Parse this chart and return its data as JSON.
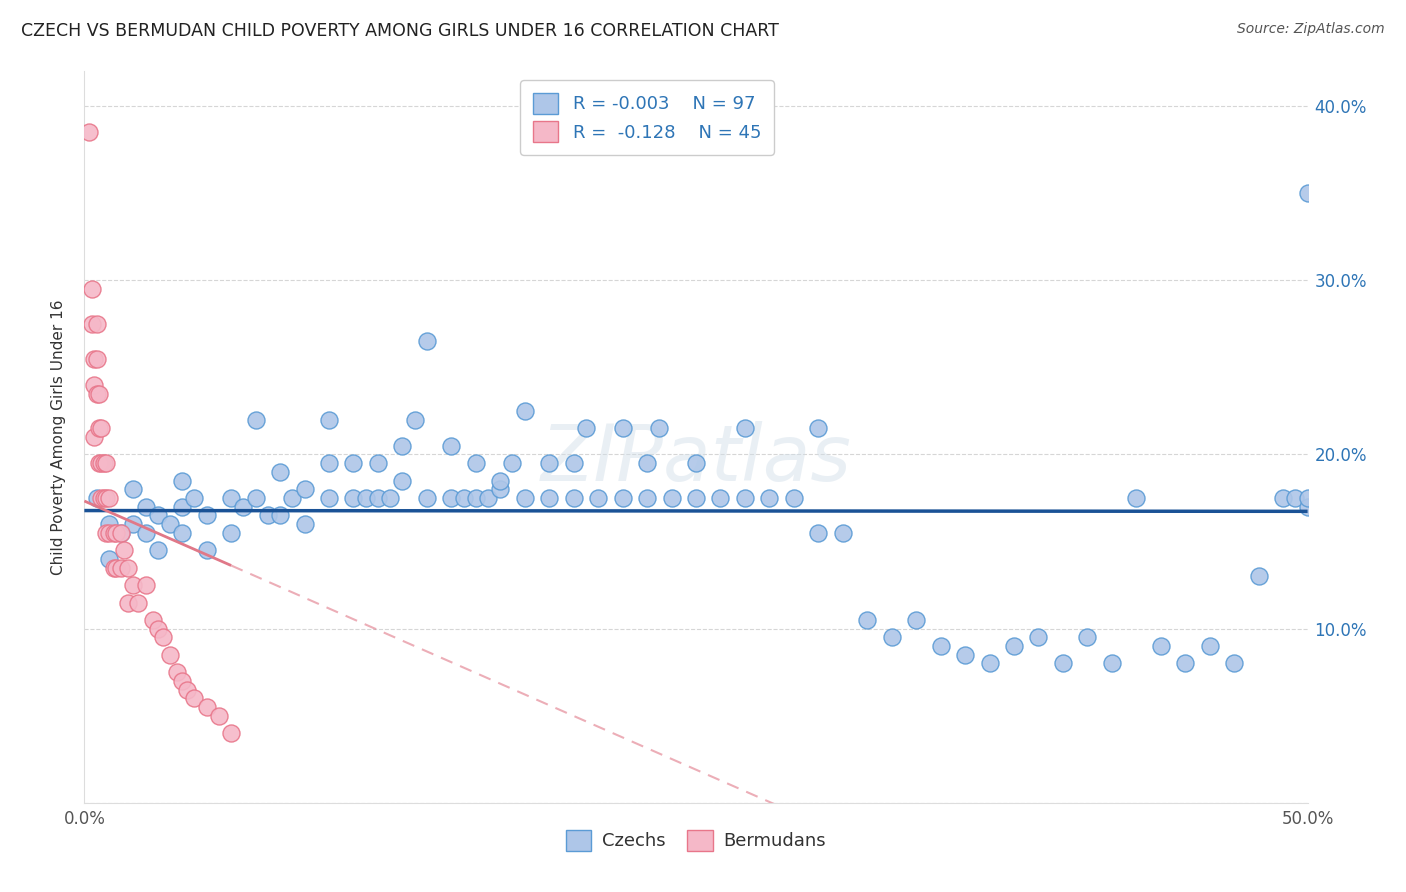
{
  "title": "CZECH VS BERMUDAN CHILD POVERTY AMONG GIRLS UNDER 16 CORRELATION CHART",
  "source": "Source: ZipAtlas.com",
  "ylabel": "Child Poverty Among Girls Under 16",
  "xlim": [
    0.0,
    0.5
  ],
  "ylim": [
    0.0,
    0.42
  ],
  "yticks": [
    0.0,
    0.1,
    0.2,
    0.3,
    0.4
  ],
  "right_ytick_labels": [
    "",
    "10.0%",
    "20.0%",
    "30.0%",
    "40.0%"
  ],
  "xticks": [
    0.0,
    0.1,
    0.2,
    0.3,
    0.4,
    0.5
  ],
  "xtick_labels": [
    "0.0%",
    "",
    "",
    "",
    "",
    "50.0%"
  ],
  "czech_color": "#aec6e8",
  "bermudan_color": "#f5b8c8",
  "czech_edge_color": "#5b9bd5",
  "bermudan_edge_color": "#e8768a",
  "trend_czech_color": "#1a5296",
  "trend_bermudan_color": "#e07888",
  "legend_text_color": "#2e75b6",
  "R_czech": -0.003,
  "N_czech": 97,
  "R_bermudan": -0.128,
  "N_bermudan": 45,
  "czech_x": [
    0.005,
    0.01,
    0.01,
    0.015,
    0.02,
    0.02,
    0.025,
    0.025,
    0.03,
    0.03,
    0.035,
    0.04,
    0.04,
    0.04,
    0.045,
    0.05,
    0.05,
    0.06,
    0.06,
    0.065,
    0.07,
    0.07,
    0.075,
    0.08,
    0.08,
    0.085,
    0.09,
    0.09,
    0.1,
    0.1,
    0.1,
    0.11,
    0.11,
    0.115,
    0.12,
    0.12,
    0.125,
    0.13,
    0.13,
    0.135,
    0.14,
    0.14,
    0.15,
    0.15,
    0.155,
    0.16,
    0.16,
    0.165,
    0.17,
    0.17,
    0.175,
    0.18,
    0.18,
    0.19,
    0.19,
    0.2,
    0.2,
    0.205,
    0.21,
    0.22,
    0.22,
    0.23,
    0.23,
    0.235,
    0.24,
    0.25,
    0.25,
    0.26,
    0.27,
    0.27,
    0.28,
    0.29,
    0.3,
    0.3,
    0.31,
    0.32,
    0.33,
    0.34,
    0.35,
    0.36,
    0.37,
    0.38,
    0.39,
    0.4,
    0.41,
    0.42,
    0.43,
    0.44,
    0.45,
    0.46,
    0.47,
    0.48,
    0.49,
    0.495,
    0.5,
    0.5,
    0.5
  ],
  "czech_y": [
    0.175,
    0.14,
    0.16,
    0.155,
    0.16,
    0.18,
    0.155,
    0.17,
    0.145,
    0.165,
    0.16,
    0.155,
    0.17,
    0.185,
    0.175,
    0.145,
    0.165,
    0.155,
    0.175,
    0.17,
    0.175,
    0.22,
    0.165,
    0.165,
    0.19,
    0.175,
    0.16,
    0.18,
    0.175,
    0.195,
    0.22,
    0.175,
    0.195,
    0.175,
    0.175,
    0.195,
    0.175,
    0.185,
    0.205,
    0.22,
    0.175,
    0.265,
    0.175,
    0.205,
    0.175,
    0.175,
    0.195,
    0.175,
    0.18,
    0.185,
    0.195,
    0.175,
    0.225,
    0.175,
    0.195,
    0.175,
    0.195,
    0.215,
    0.175,
    0.215,
    0.175,
    0.175,
    0.195,
    0.215,
    0.175,
    0.175,
    0.195,
    0.175,
    0.175,
    0.215,
    0.175,
    0.175,
    0.155,
    0.215,
    0.155,
    0.105,
    0.095,
    0.105,
    0.09,
    0.085,
    0.08,
    0.09,
    0.095,
    0.08,
    0.095,
    0.08,
    0.175,
    0.09,
    0.08,
    0.09,
    0.08,
    0.13,
    0.175,
    0.175,
    0.17,
    0.35,
    0.175
  ],
  "bermudan_x": [
    0.002,
    0.003,
    0.003,
    0.004,
    0.004,
    0.004,
    0.005,
    0.005,
    0.005,
    0.006,
    0.006,
    0.006,
    0.007,
    0.007,
    0.007,
    0.008,
    0.008,
    0.009,
    0.009,
    0.009,
    0.01,
    0.01,
    0.012,
    0.012,
    0.013,
    0.013,
    0.015,
    0.015,
    0.016,
    0.018,
    0.018,
    0.02,
    0.022,
    0.025,
    0.028,
    0.03,
    0.032,
    0.035,
    0.038,
    0.04,
    0.042,
    0.045,
    0.05,
    0.055,
    0.06
  ],
  "bermudan_y": [
    0.385,
    0.295,
    0.275,
    0.255,
    0.24,
    0.21,
    0.275,
    0.255,
    0.235,
    0.235,
    0.215,
    0.195,
    0.215,
    0.195,
    0.175,
    0.195,
    0.175,
    0.195,
    0.175,
    0.155,
    0.175,
    0.155,
    0.155,
    0.135,
    0.155,
    0.135,
    0.155,
    0.135,
    0.145,
    0.135,
    0.115,
    0.125,
    0.115,
    0.125,
    0.105,
    0.1,
    0.095,
    0.085,
    0.075,
    0.07,
    0.065,
    0.06,
    0.055,
    0.05,
    0.04
  ]
}
